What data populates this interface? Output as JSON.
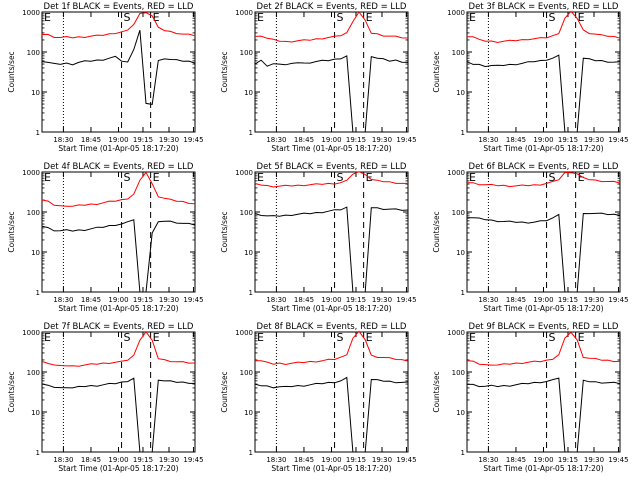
{
  "chart_data": [
    {
      "type": "line",
      "title": "Det 1f BLACK = Events, RED = LLD",
      "xlabel": "Start Time (01-Apr-05 18:17:20)",
      "ylabel": "Counts/sec",
      "x_tick_labels": [
        "18:30",
        "18:45",
        "19:00",
        "19:15",
        "19:30",
        "19:45"
      ],
      "y_tick_labels": [
        "1",
        "10",
        "100",
        "1000"
      ],
      "ylim": [
        1,
        1000
      ],
      "y_scale": "log",
      "markers": [
        "E",
        "S",
        "E"
      ],
      "colors": {
        "events": "#000000",
        "lld": "#ff0000"
      },
      "series": [
        {
          "values": [
            60,
            55,
            50,
            50,
            52,
            50,
            55,
            58,
            60,
            62,
            65,
            70,
            75,
            60,
            55,
            120,
            350,
            5,
            5,
            60,
            70,
            65,
            62,
            60,
            58,
            55
          ]
        },
        {
          "values": [
            280,
            270,
            240,
            230,
            235,
            230,
            235,
            240,
            250,
            255,
            265,
            280,
            300,
            320,
            340,
            500,
            900,
            1000,
            800,
            400,
            350,
            320,
            300,
            280,
            270,
            260
          ]
        }
      ]
    },
    {
      "type": "line",
      "title": "Det 2f BLACK = Events, RED = LLD",
      "xlabel": "Start Time (01-Apr-05 18:17:20)",
      "ylabel": "Counts/sec",
      "x_tick_labels": [
        "18:30",
        "18:45",
        "19:00",
        "19:15",
        "19:30",
        "19:45"
      ],
      "y_tick_labels": [
        "1",
        "10",
        "100",
        "1000"
      ],
      "ylim": [
        1,
        1000
      ],
      "y_scale": "log",
      "markers": [
        "E",
        "S",
        "E"
      ],
      "colors": {
        "events": "#000000",
        "lld": "#ff0000"
      },
      "series": [
        {
          "values": [
            50,
            60,
            45,
            50,
            52,
            48,
            50,
            55,
            52,
            55,
            58,
            60,
            62,
            65,
            70,
            80,
            1,
            1,
            1,
            80,
            70,
            65,
            60,
            62,
            58,
            55
          ]
        },
        {
          "values": [
            240,
            260,
            220,
            200,
            190,
            180,
            185,
            190,
            195,
            200,
            210,
            220,
            230,
            240,
            260,
            300,
            600,
            1000,
            600,
            300,
            280,
            260,
            250,
            240,
            230,
            220
          ]
        }
      ]
    },
    {
      "type": "line",
      "title": "Det 3f BLACK = Events, RED = LLD",
      "xlabel": "Start Time (01-Apr-05 18:17:20)",
      "ylabel": "Counts/sec",
      "x_tick_labels": [
        "18:30",
        "18:45",
        "19:00",
        "19:15",
        "19:30",
        "19:45"
      ],
      "y_tick_labels": [
        "1",
        "10",
        "100",
        "1000"
      ],
      "ylim": [
        1,
        1000
      ],
      "y_scale": "log",
      "markers": [
        "E",
        "S",
        "E"
      ],
      "colors": {
        "events": "#000000",
        "lld": "#ff0000"
      },
      "series": [
        {
          "values": [
            55,
            50,
            48,
            45,
            46,
            45,
            47,
            48,
            50,
            52,
            55,
            58,
            60,
            65,
            70,
            80,
            1,
            1,
            1,
            70,
            65,
            62,
            60,
            58,
            56,
            55
          ]
        },
        {
          "values": [
            250,
            240,
            200,
            190,
            185,
            180,
            185,
            190,
            195,
            200,
            210,
            215,
            220,
            230,
            250,
            300,
            700,
            1000,
            700,
            350,
            300,
            280,
            260,
            250,
            240,
            230
          ]
        }
      ]
    },
    {
      "type": "line",
      "title": "Det 4f BLACK = Events, RED = LLD",
      "xlabel": "Start Time (01-Apr-05 18:17:20)",
      "ylabel": "Counts/sec",
      "x_tick_labels": [
        "18:30",
        "18:45",
        "19:00",
        "19:15",
        "19:30",
        "19:45"
      ],
      "y_tick_labels": [
        "1",
        "10",
        "100",
        "1000"
      ],
      "ylim": [
        1,
        1000
      ],
      "y_scale": "log",
      "markers": [
        "E",
        "S",
        "E"
      ],
      "colors": {
        "events": "#000000",
        "lld": "#ff0000"
      },
      "series": [
        {
          "values": [
            45,
            40,
            35,
            34,
            35,
            34,
            35,
            36,
            38,
            40,
            42,
            45,
            48,
            50,
            55,
            65,
            1,
            1,
            30,
            55,
            60,
            58,
            55,
            52,
            50,
            48
          ]
        },
        {
          "values": [
            200,
            180,
            150,
            140,
            145,
            140,
            145,
            150,
            155,
            160,
            170,
            180,
            190,
            200,
            220,
            280,
            600,
            1000,
            500,
            250,
            220,
            200,
            190,
            180,
            170,
            160
          ]
        }
      ]
    },
    {
      "type": "line",
      "title": "Det 5f BLACK = Events, RED = LLD",
      "xlabel": "Start Time (01-Apr-05 18:17:20)",
      "ylabel": "Counts/sec",
      "x_tick_labels": [
        "18:30",
        "18:45",
        "19:00",
        "19:15",
        "19:30",
        "19:45"
      ],
      "y_tick_labels": [
        "1",
        "10",
        "100",
        "1000"
      ],
      "ylim": [
        1,
        1000
      ],
      "y_scale": "log",
      "markers": [
        "E",
        "S",
        "E"
      ],
      "colors": {
        "events": "#000000",
        "lld": "#ff0000"
      },
      "series": [
        {
          "values": [
            90,
            85,
            80,
            78,
            80,
            82,
            85,
            88,
            90,
            92,
            95,
            100,
            105,
            110,
            115,
            130,
            1,
            1,
            1,
            130,
            125,
            120,
            118,
            115,
            112,
            110
          ]
        },
        {
          "values": [
            500,
            480,
            450,
            440,
            445,
            450,
            455,
            460,
            470,
            480,
            490,
            500,
            510,
            520,
            540,
            600,
            900,
            1000,
            900,
            650,
            600,
            580,
            560,
            540,
            520,
            500
          ]
        }
      ]
    },
    {
      "type": "line",
      "title": "Det 6f BLACK = Events, RED = LLD",
      "xlabel": "Start Time (01-Apr-05 18:17:20)",
      "ylabel": "Counts/sec",
      "x_tick_labels": [
        "18:30",
        "18:45",
        "19:00",
        "19:15",
        "19:30",
        "19:45"
      ],
      "y_tick_labels": [
        "1",
        "10",
        "100",
        "1000"
      ],
      "ylim": [
        1,
        1000
      ],
      "y_scale": "log",
      "markers": [
        "E",
        "S",
        "E"
      ],
      "colors": {
        "events": "#000000",
        "lld": "#ff0000"
      },
      "series": [
        {
          "values": [
            75,
            72,
            68,
            65,
            62,
            60,
            58,
            57,
            56,
            55,
            55,
            56,
            58,
            62,
            70,
            90,
            1,
            1,
            1,
            90,
            95,
            92,
            90,
            88,
            86,
            85
          ]
        },
        {
          "values": [
            550,
            530,
            500,
            480,
            470,
            460,
            455,
            450,
            450,
            455,
            460,
            470,
            490,
            520,
            560,
            650,
            950,
            1000,
            900,
            700,
            650,
            620,
            600,
            580,
            560,
            540
          ]
        }
      ]
    },
    {
      "type": "line",
      "title": "Det 7f BLACK = Events, RED = LLD",
      "xlabel": "Start Time (01-Apr-05 18:17:20)",
      "ylabel": "Counts/sec",
      "x_tick_labels": [
        "18:30",
        "18:45",
        "19:00",
        "19:15",
        "19:30",
        "19:45"
      ],
      "y_tick_labels": [
        "1",
        "10",
        "100",
        "1000"
      ],
      "ylim": [
        1,
        1000
      ],
      "y_scale": "log",
      "markers": [
        "E",
        "S",
        "E"
      ],
      "colors": {
        "events": "#000000",
        "lld": "#ff0000"
      },
      "series": [
        {
          "values": [
            50,
            45,
            42,
            40,
            42,
            40,
            42,
            44,
            45,
            46,
            48,
            50,
            52,
            55,
            60,
            70,
            1,
            1,
            1,
            65,
            60,
            58,
            56,
            55,
            54,
            52
          ]
        },
        {
          "values": [
            180,
            170,
            150,
            140,
            145,
            140,
            145,
            150,
            155,
            160,
            165,
            170,
            175,
            180,
            200,
            260,
            650,
            1000,
            600,
            220,
            200,
            190,
            180,
            175,
            170,
            165
          ]
        }
      ]
    },
    {
      "type": "line",
      "title": "Det 8f BLACK = Events, RED = LLD",
      "xlabel": "Start Time (01-Apr-05 18:17:20)",
      "ylabel": "Counts/sec",
      "x_tick_labels": [
        "18:30",
        "18:45",
        "19:00",
        "19:15",
        "19:30",
        "19:45"
      ],
      "y_tick_labels": [
        "1",
        "10",
        "100",
        "1000"
      ],
      "ylim": [
        1,
        1000
      ],
      "y_scale": "log",
      "markers": [
        "E",
        "S",
        "E"
      ],
      "colors": {
        "events": "#000000",
        "lld": "#ff0000"
      },
      "series": [
        {
          "values": [
            48,
            46,
            44,
            42,
            43,
            42,
            44,
            45,
            46,
            48,
            50,
            52,
            54,
            56,
            60,
            70,
            1,
            1,
            1,
            65,
            62,
            60,
            58,
            56,
            55,
            54
          ]
        },
        {
          "values": [
            200,
            190,
            170,
            160,
            165,
            160,
            165,
            170,
            175,
            180,
            185,
            190,
            200,
            210,
            230,
            280,
            700,
            1000,
            650,
            260,
            240,
            230,
            220,
            210,
            200,
            195
          ]
        }
      ]
    },
    {
      "type": "line",
      "title": "Det 9f BLACK = Events, RED = LLD",
      "xlabel": "Start Time (01-Apr-05 18:17:20)",
      "ylabel": "Counts/sec",
      "x_tick_labels": [
        "18:30",
        "18:45",
        "19:00",
        "19:15",
        "19:30",
        "19:45"
      ],
      "y_tick_labels": [
        "1",
        "10",
        "100",
        "1000"
      ],
      "ylim": [
        1,
        1000
      ],
      "y_scale": "log",
      "markers": [
        "E",
        "S",
        "E"
      ],
      "colors": {
        "events": "#000000",
        "lld": "#ff0000"
      },
      "series": [
        {
          "values": [
            50,
            48,
            45,
            44,
            45,
            44,
            45,
            46,
            48,
            50,
            52,
            54,
            56,
            58,
            62,
            72,
            1,
            1,
            1,
            60,
            58,
            56,
            55,
            54,
            53,
            52
          ]
        },
        {
          "values": [
            190,
            180,
            160,
            150,
            155,
            150,
            155,
            160,
            165,
            170,
            175,
            180,
            185,
            195,
            215,
            270,
            680,
            1000,
            620,
            240,
            220,
            210,
            200,
            195,
            190,
            185
          ]
        }
      ]
    }
  ]
}
